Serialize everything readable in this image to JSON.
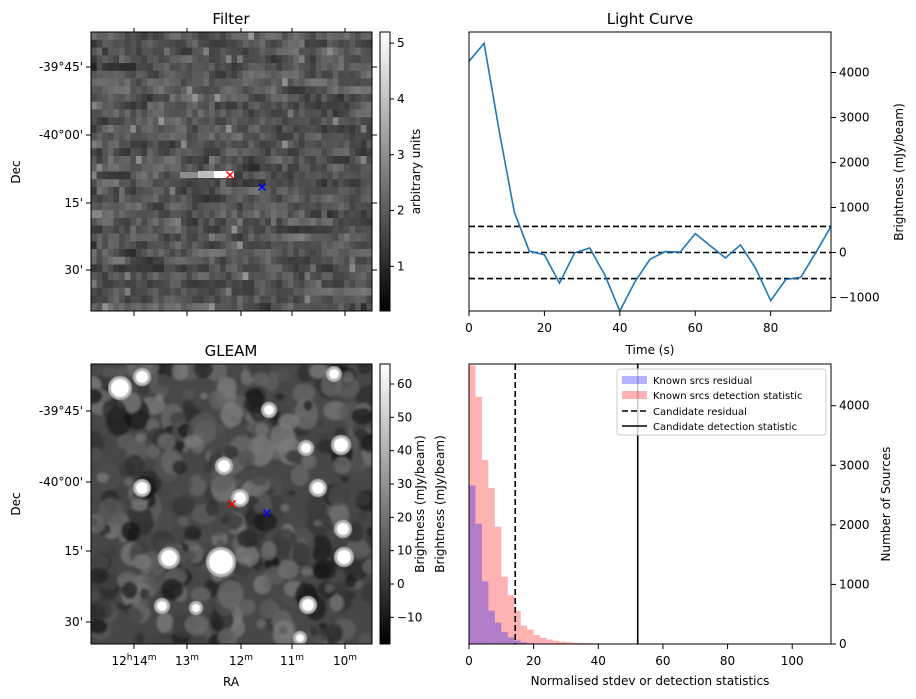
{
  "chart_data": [
    {
      "type": "heatmap",
      "title": "Filter",
      "xlabel": "",
      "ylabel": "Dec",
      "yticks": [
        "-39°45'",
        "-40°00'",
        "15'",
        "30'"
      ],
      "colorbar": {
        "label": "arbitrary units",
        "range": [
          0.2,
          5.2
        ],
        "ticks": [
          1,
          2,
          3,
          4,
          5
        ],
        "colormap": "gray"
      },
      "markers": [
        {
          "name": "candidate",
          "symbol": "x",
          "color": "#ff0000"
        },
        {
          "name": "reference",
          "symbol": "x",
          "color": "#0000ff"
        }
      ]
    },
    {
      "type": "line",
      "title": "Light Curve",
      "xlabel": "Time (s)",
      "ylabel": "Brightness (mJy/beam)",
      "xlim": [
        0,
        96
      ],
      "ylim": [
        -1300,
        4900
      ],
      "xticks": [
        0,
        20,
        40,
        60,
        80
      ],
      "yticks": [
        -1000,
        0,
        1000,
        2000,
        3000,
        4000
      ],
      "series": [
        {
          "name": "light curve",
          "color": "#1f77b4",
          "x": [
            0,
            4,
            8,
            12,
            16,
            20,
            24,
            28,
            32,
            36,
            40,
            44,
            48,
            52,
            56,
            60,
            64,
            68,
            72,
            76,
            80,
            84,
            88,
            92,
            96
          ],
          "y": [
            4250,
            4650,
            2700,
            900,
            30,
            -50,
            -680,
            -10,
            100,
            -500,
            -1300,
            -650,
            -150,
            20,
            10,
            420,
            150,
            -120,
            170,
            -350,
            -1070,
            -600,
            -550,
            0,
            580
          ]
        }
      ],
      "hlines": [
        {
          "y": 580,
          "style": "dashed",
          "color": "#000000"
        },
        {
          "y": 0,
          "style": "dashed",
          "color": "#000000"
        },
        {
          "y": -580,
          "style": "dashed",
          "color": "#000000"
        }
      ]
    },
    {
      "type": "heatmap",
      "title": "GLEAM",
      "xlabel": "RA",
      "ylabel": "Dec",
      "yticks": [
        "-39°45'",
        "-40°00'",
        "15'",
        "30'"
      ],
      "xticks": [
        "14",
        "13",
        "12",
        "11",
        "10"
      ],
      "xtick_prefix": "12h",
      "xtick_unit": "m",
      "colorbar": {
        "label": "Brightness (mJy/beam)",
        "range": [
          -18,
          66
        ],
        "ticks": [
          -10,
          0,
          10,
          20,
          30,
          40,
          50,
          60
        ],
        "colormap": "gray"
      },
      "markers": [
        {
          "name": "candidate",
          "symbol": "x",
          "color": "#ff0000"
        },
        {
          "name": "reference",
          "symbol": "x",
          "color": "#0000ff"
        }
      ]
    },
    {
      "type": "bar",
      "subtype": "histogram",
      "title": "",
      "xlabel": "Normalised stdev or detection statistics",
      "ylabel": "Brightness (mJy/beam)",
      "y2label": "Number of Sources",
      "xlim": [
        0,
        112
      ],
      "ylim": [
        0,
        4700
      ],
      "xticks": [
        0,
        20,
        40,
        60,
        80,
        100
      ],
      "yticks": [
        0,
        1000,
        2000,
        3000,
        4000
      ],
      "bin_width": 2,
      "series": [
        {
          "name": "Known srcs residual",
          "color": "#0000ff",
          "alpha": 0.3,
          "values": [
            2660,
            2020,
            1050,
            560,
            360,
            200,
            110,
            60,
            30,
            15,
            8
          ]
        },
        {
          "name": "Known srcs detection statistic",
          "color": "#ff0000",
          "alpha": 0.3,
          "values": [
            4680,
            4150,
            3090,
            2620,
            1970,
            1130,
            820,
            560,
            310,
            240,
            150,
            105,
            75,
            55,
            40,
            30,
            22,
            18,
            14,
            11,
            9,
            8,
            7,
            6,
            5,
            5,
            4,
            4,
            3,
            3,
            3,
            3,
            2,
            2,
            2,
            2,
            2,
            2,
            2,
            2,
            2,
            2,
            2,
            2,
            1,
            1,
            1,
            1,
            1,
            1,
            1,
            1,
            1,
            1,
            1
          ]
        }
      ],
      "vlines": [
        {
          "name": "Candidate residual",
          "x": 14.3,
          "style": "dashed",
          "color": "#000000"
        },
        {
          "name": "Candidate detection statistic",
          "x": 52.2,
          "style": "solid",
          "color": "#000000"
        }
      ],
      "legend": {
        "position": "top-right",
        "entries": [
          "Known srcs residual",
          "Known srcs detection statistic",
          "Candidate residual",
          "Candidate detection statistic"
        ]
      }
    }
  ]
}
